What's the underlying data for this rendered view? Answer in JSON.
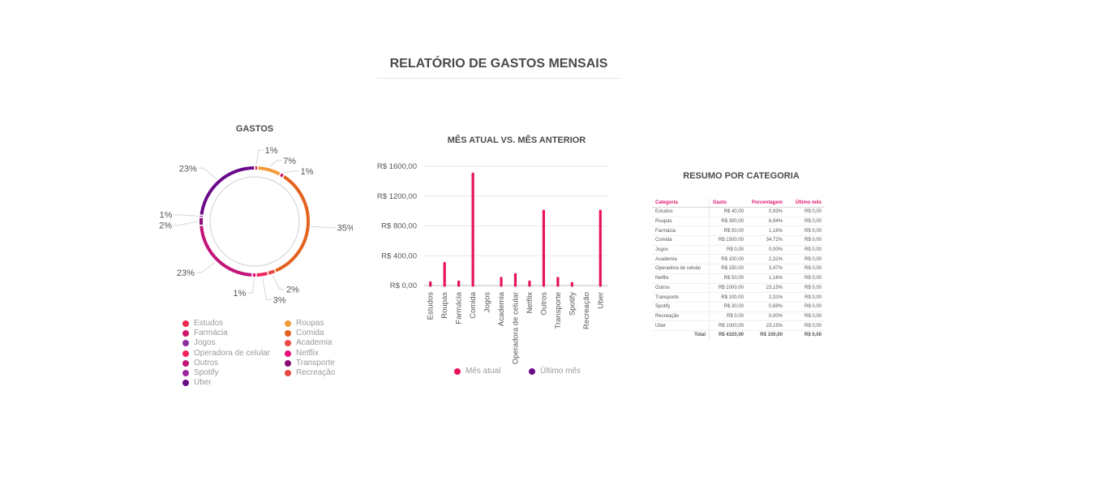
{
  "page": {
    "title": "RELATÓRIO DE GASTOS MENSAIS"
  },
  "colors": {
    "accent": "#e2176b",
    "current_month": "#e8125c",
    "last_month": "#6a0a8a"
  },
  "chart_data": [
    {
      "type": "pie",
      "variant": "donut",
      "title": "GASTOS",
      "categories": [
        "Estudos",
        "Roupas",
        "Farmácia",
        "Comida",
        "Jogos",
        "Academia",
        "Operadora de celular",
        "Netflix",
        "Outros",
        "Transporte",
        "Spotify",
        "Recreação",
        "Uber"
      ],
      "values": [
        40,
        300,
        50,
        1500,
        0,
        100,
        150,
        50,
        1000,
        100,
        30,
        0,
        1000
      ],
      "slice_labels": [
        "1%",
        "7%",
        "1%",
        "35%",
        "",
        "2%",
        "3%",
        "1%",
        "23%",
        "2%",
        "1%",
        "",
        "23%"
      ],
      "colors": [
        "#ef2a4e",
        "#f39a3a",
        "#d1156a",
        "#e3621f",
        "#8e2fa0",
        "#ea4a45",
        "#f0245a",
        "#e8117b",
        "#c2157a",
        "#8b0a78",
        "#9b2a9b",
        "#ea4a45",
        "#6a0a8a"
      ],
      "legend_position": "bottom"
    },
    {
      "type": "bar",
      "title": "MÊS ATUAL VS. MÊS ANTERIOR",
      "categories": [
        "Estudos",
        "Roupas",
        "Farmácia",
        "Comida",
        "Jogos",
        "Academia",
        "Operadora de celular",
        "Netflix",
        "Outros",
        "Transporte",
        "Spotify",
        "Recreação",
        "Uber"
      ],
      "series": [
        {
          "name": "Mês atual",
          "values": [
            40,
            300,
            50,
            1500,
            0,
            100,
            150,
            50,
            1000,
            100,
            30,
            0,
            1000
          ]
        },
        {
          "name": "Último mês",
          "values": [
            0,
            0,
            0,
            0,
            0,
            0,
            0,
            0,
            0,
            0,
            0,
            0,
            0
          ]
        }
      ],
      "y_ticks": [
        "R$ 0,00",
        "R$ 400,00",
        "R$ 800,00",
        "R$ 1200,00",
        "R$ 1600,00"
      ],
      "ylim": [
        0,
        1600
      ],
      "grid": true,
      "legend_position": "bottom"
    },
    {
      "type": "table",
      "title": "RESUMO POR CATEGORIA",
      "columns": [
        "Categoria",
        "Gasto",
        "Porcentagem",
        "Último mês"
      ],
      "rows": [
        [
          "Estudos",
          "R$ 40,00",
          "0,93%",
          "R$ 0,00"
        ],
        [
          "Roupas",
          "R$ 300,00",
          "6,94%",
          "R$ 0,00"
        ],
        [
          "Farmácia",
          "R$ 50,00",
          "1,16%",
          "R$ 0,00"
        ],
        [
          "Comida",
          "R$ 1500,00",
          "34,72%",
          "R$ 0,00"
        ],
        [
          "Jogos",
          "R$ 0,00",
          "0,00%",
          "R$ 0,00"
        ],
        [
          "Academia",
          "R$ 100,00",
          "2,31%",
          "R$ 0,00"
        ],
        [
          "Operadora de celular",
          "R$ 150,00",
          "3,47%",
          "R$ 0,00"
        ],
        [
          "Netflix",
          "R$ 50,00",
          "1,16%",
          "R$ 0,00"
        ],
        [
          "Outros",
          "R$ 1000,00",
          "23,15%",
          "R$ 0,00"
        ],
        [
          "Transporte",
          "R$ 100,00",
          "2,31%",
          "R$ 0,00"
        ],
        [
          "Spotify",
          "R$ 30,00",
          "0,69%",
          "R$ 0,00"
        ],
        [
          "Recreação",
          "R$ 0,00",
          "0,00%",
          "R$ 0,00"
        ],
        [
          "Uber",
          "R$ 1000,00",
          "23,15%",
          "R$ 0,00"
        ]
      ],
      "total": [
        "Total",
        "R$ 4320,00",
        "R$ 100,00",
        "R$ 0,00"
      ]
    }
  ]
}
